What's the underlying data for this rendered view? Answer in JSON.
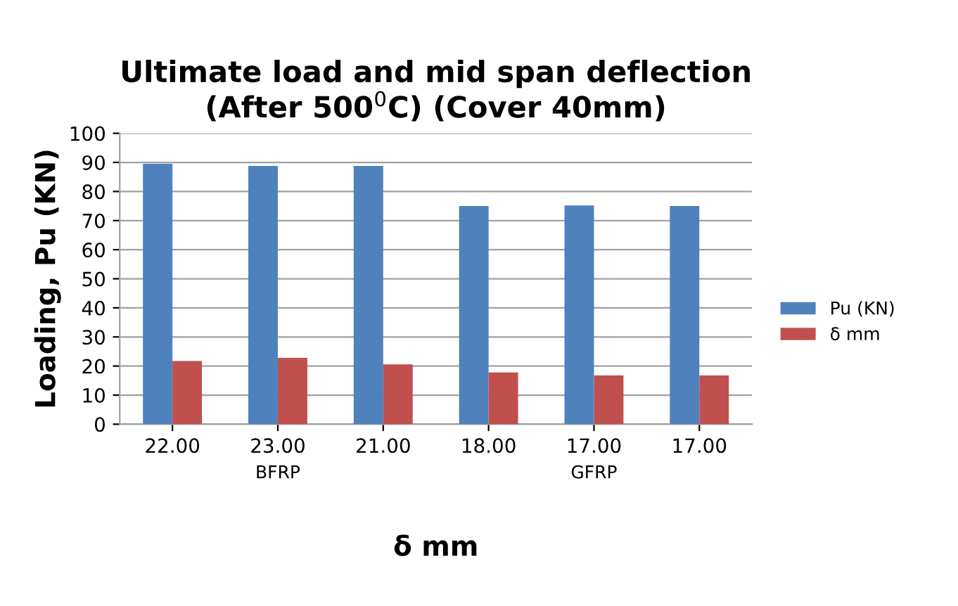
{
  "chart_data": {
    "type": "bar",
    "title": "Ultimate load and mid span deflection\n(After 500$^{0}$C) (Cover 40mm)",
    "xlabel": "δ mm",
    "ylabel": "Loading, Pu (KN)",
    "categories": [
      "22.00",
      "23.00",
      "21.00",
      "18.00",
      "17.00",
      "17.00"
    ],
    "series": [
      {
        "name": "Pu (KN)",
        "color": "#4f81bd",
        "values": [
          89.5,
          88.8,
          88.8,
          75.0,
          75.2,
          75.0
        ]
      },
      {
        "name": "δ mm",
        "color": "#c0504d",
        "values": [
          21.7,
          22.8,
          20.6,
          17.8,
          16.8,
          16.8
        ]
      }
    ],
    "annotations": [
      "BFRP",
      "GFRP"
    ],
    "ylim": [
      0,
      100
    ],
    "yticks": [
      0,
      10,
      20,
      30,
      40,
      50,
      60,
      70,
      80,
      90,
      100
    ],
    "grid": "y",
    "legend": "right"
  }
}
